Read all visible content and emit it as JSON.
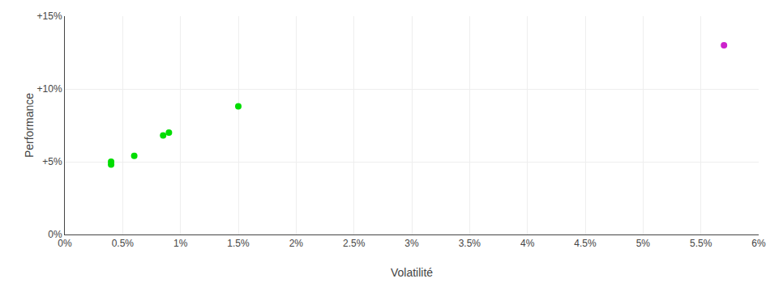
{
  "chart_data": {
    "type": "scatter",
    "xlabel": "Volatilité",
    "ylabel": "Performance",
    "series": [
      {
        "color": "#00dd00",
        "x": [
          0.004,
          0.004,
          0.006,
          0.0085,
          0.009,
          0.015
        ],
        "values": [
          0.05,
          0.048,
          0.054,
          0.068,
          0.07,
          0.088
        ]
      },
      {
        "color": "#cc22cc",
        "x": [
          0.057
        ],
        "values": [
          0.13
        ]
      }
    ],
    "xlim": [
      0.0,
      0.06
    ],
    "ylim": [
      0.0,
      0.15
    ],
    "xticks": [
      {
        "value": 0.0,
        "label": "0%"
      },
      {
        "value": 0.005,
        "label": "0.5%"
      },
      {
        "value": 0.01,
        "label": "1%"
      },
      {
        "value": 0.015,
        "label": "1.5%"
      },
      {
        "value": 0.02,
        "label": "2%"
      },
      {
        "value": 0.025,
        "label": "2.5%"
      },
      {
        "value": 0.03,
        "label": "3%"
      },
      {
        "value": 0.035,
        "label": "3.5%"
      },
      {
        "value": 0.04,
        "label": "4%"
      },
      {
        "value": 0.045,
        "label": "4.5%"
      },
      {
        "value": 0.05,
        "label": "5%"
      },
      {
        "value": 0.055,
        "label": "5.5%"
      },
      {
        "value": 0.06,
        "label": "6%"
      }
    ],
    "yticks": [
      {
        "value": 0.0,
        "label": "0%"
      },
      {
        "value": 0.05,
        "label": "+5%"
      },
      {
        "value": 0.1,
        "label": "+10%"
      },
      {
        "value": 0.15,
        "label": "+15%"
      }
    ],
    "grid": true
  }
}
